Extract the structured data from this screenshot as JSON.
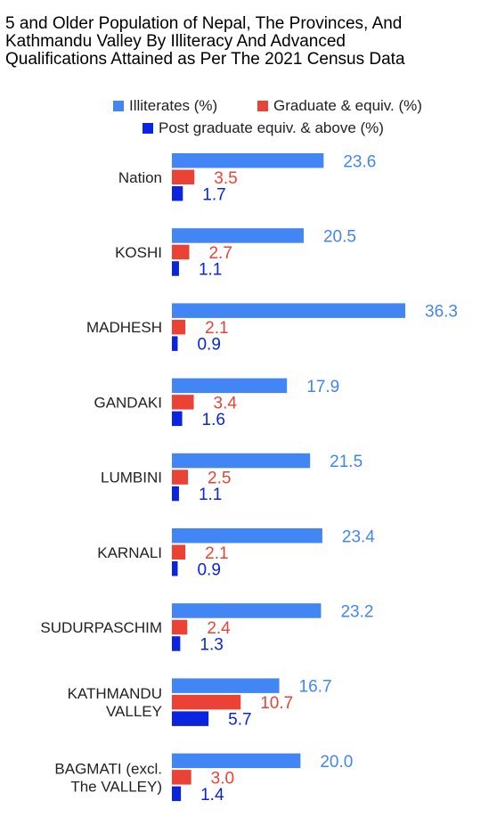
{
  "chart_data": {
    "type": "bar",
    "orientation": "horizontal",
    "title_lines": [
      "5 and Older Population of Nepal, The Provinces, And",
      "Kathmandu Valley By Illiteracy And Advanced",
      "Qualifications Attained as Per The 2021 Census Data"
    ],
    "categories": [
      [
        "Nation"
      ],
      [
        "KOSHI"
      ],
      [
        "MADHESH"
      ],
      [
        "GANDAKI"
      ],
      [
        "LUMBINI"
      ],
      [
        "KARNALI"
      ],
      [
        "SUDURPASCHIM"
      ],
      [
        "KATHMANDU",
        "VALLEY"
      ],
      [
        "BAGMATI (excl.",
        "The VALLEY)"
      ]
    ],
    "series": [
      {
        "name": "Illiterates (%)",
        "color": "#4285f4",
        "values": [
          23.6,
          20.5,
          36.3,
          17.9,
          21.5,
          23.4,
          23.2,
          16.7,
          20.0
        ],
        "labels": [
          "23.6",
          "20.5",
          "36.3",
          "17.9",
          "21.5",
          "23.4",
          "23.2",
          "16.7",
          "20.0"
        ]
      },
      {
        "name": "Graduate & equiv. (%)",
        "color": "#ea4335",
        "values": [
          3.5,
          2.7,
          2.1,
          3.4,
          2.5,
          2.1,
          2.4,
          10.7,
          3.0
        ],
        "labels": [
          "3.5",
          "2.7",
          "2.1",
          "3.4",
          "2.5",
          "2.1",
          "2.4",
          "10.7",
          "3.0"
        ]
      },
      {
        "name": "Post graduate equiv. & above (%)",
        "color": "#0b24e0",
        "values": [
          1.7,
          1.1,
          0.9,
          1.6,
          1.1,
          0.9,
          1.3,
          5.7,
          1.4
        ],
        "labels": [
          "1.7",
          "1.1",
          "0.9",
          "1.6",
          "1.1",
          "0.9",
          "1.3",
          "5.7",
          "1.4"
        ]
      }
    ],
    "xlim": [
      0,
      36.3
    ],
    "grid": false,
    "legend_position": "top",
    "data_labels": true
  }
}
